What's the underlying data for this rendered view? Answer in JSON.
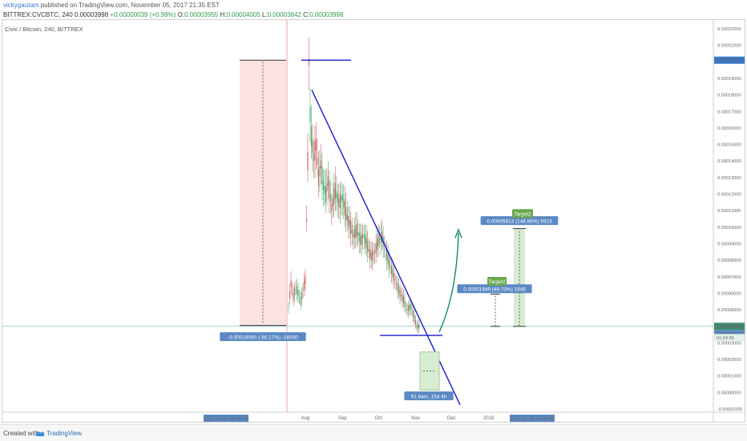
{
  "header": {
    "user": "vickygautam",
    "published": "published on TradingView.com, November 05, 2017 21:35 EST",
    "ticker": "BITTREX:CVCBTC, 240",
    "open_label": "O:",
    "open": "0.00003998",
    "change": "+0.00000039 (+0.99%)",
    "o_label": "O:",
    "o": "0.00003955",
    "h_label": "H:",
    "h": "0.00004005",
    "l_label": "L:",
    "l": "0.00003842",
    "c_label": "C:",
    "c": "0.00003998"
  },
  "symbol_title": "Civic / Bitcoin, 240, BITTREX",
  "footer": {
    "created_with": "Created with",
    "brand": "TradingView"
  },
  "colors": {
    "up": "#2e9e4a",
    "trend": "#1a1ad6",
    "arrow": "#1a8a5a",
    "label_bg": "#5b89c4",
    "target_bg": "#6aa84f",
    "shade_red": "#fbe3e3",
    "shade_green": "#d7ecd3"
  },
  "chart_data": {
    "type": "candlestick",
    "title": "Civic / Bitcoin, 240, BITTREX",
    "y_ticks": [
      "0.00022000",
      "0.00021000",
      "0.00020000",
      "0.00019000",
      "0.00018000",
      "0.00017000",
      "0.00016000",
      "0.00015000",
      "0.00014000",
      "0.00013000",
      "0.00012000",
      "0.00011000",
      "0.00010000",
      "0.00009000",
      "0.00008000",
      "0.00007000",
      "0.00006000",
      "0.00005000",
      "0.00004000",
      "0.00003000",
      "0.00002000",
      "0.00001000",
      "0.00000000",
      "-0.00001000"
    ],
    "ylim": [
      -1e-05,
      0.00022
    ],
    "x_ticks": [
      "Aug",
      "Sep",
      "Oct",
      "Nov",
      "Dec",
      "2018"
    ],
    "x_highlight_labels": [
      "2017-05-31 00:00:00",
      "2017-11-20 19:00:00"
    ],
    "price_labels": [
      {
        "value": 0.00020102,
        "text": "0.00020102"
      },
      {
        "value": 3.561e-05,
        "text": "0.00003561"
      },
      {
        "value": 3.998e-05,
        "text": "0.00003998"
      }
    ],
    "countdown": "01:24:35",
    "measure_drop": "-0.00016050 (-80.17%) -16050",
    "measure_bars": "91 bars, 15d 4h",
    "target1": {
      "name": "Target1",
      "text": "0.00001949 (48.73%) 1949"
    },
    "target2": {
      "name": "Target2",
      "text": "0.00005913 (148.86%) 5913"
    },
    "series": [
      {
        "name": "CVCBTC",
        "points": [
          [
            "2017-07-18",
            5.2e-05
          ],
          [
            "2017-07-20",
            6.6e-05
          ],
          [
            "2017-07-22",
            5.8e-05
          ],
          [
            "2017-07-24",
            6.4e-05
          ],
          [
            "2017-07-26",
            6e-05
          ],
          [
            "2017-07-28",
            5.5e-05
          ],
          [
            "2017-07-30",
            6.2e-05
          ],
          [
            "2017-08-01",
            6.8e-05
          ],
          [
            "2017-08-03",
            0.00014
          ],
          [
            "2017-08-04",
            0.0002
          ],
          [
            "2017-08-05",
            0.000168
          ],
          [
            "2017-08-06",
            0.000155
          ],
          [
            "2017-08-08",
            0.000142
          ],
          [
            "2017-08-10",
            0.00015
          ],
          [
            "2017-08-12",
            0.00013
          ],
          [
            "2017-08-14",
            0.000138
          ],
          [
            "2017-08-16",
            0.000125
          ],
          [
            "2017-08-18",
            0.00012
          ],
          [
            "2017-08-20",
            0.000128
          ],
          [
            "2017-08-23",
            0.000112
          ],
          [
            "2017-08-26",
            0.000122
          ],
          [
            "2017-08-29",
            0.000115
          ],
          [
            "2017-09-01",
            0.000118
          ],
          [
            "2017-09-04",
            0.000108
          ],
          [
            "2017-09-07",
            0.000102
          ],
          [
            "2017-09-10",
            9.5e-05
          ],
          [
            "2017-09-13",
            9.8e-05
          ],
          [
            "2017-09-16",
            9.2e-05
          ],
          [
            "2017-09-19",
            9.5e-05
          ],
          [
            "2017-09-22",
            8.8e-05
          ],
          [
            "2017-09-25",
            8.2e-05
          ],
          [
            "2017-09-28",
            8.5e-05
          ],
          [
            "2017-10-01",
            9.2e-05
          ],
          [
            "2017-10-04",
            9.4e-05
          ],
          [
            "2017-10-07",
            8.6e-05
          ],
          [
            "2017-10-10",
            7.8e-05
          ],
          [
            "2017-10-13",
            7.2e-05
          ],
          [
            "2017-10-16",
            6.6e-05
          ],
          [
            "2017-10-19",
            6e-05
          ],
          [
            "2017-10-22",
            5.6e-05
          ],
          [
            "2017-10-25",
            5e-05
          ],
          [
            "2017-10-28",
            5.2e-05
          ],
          [
            "2017-10-31",
            4.5e-05
          ],
          [
            "2017-11-02",
            4e-05
          ],
          [
            "2017-11-05",
            4e-05
          ]
        ]
      }
    ]
  }
}
